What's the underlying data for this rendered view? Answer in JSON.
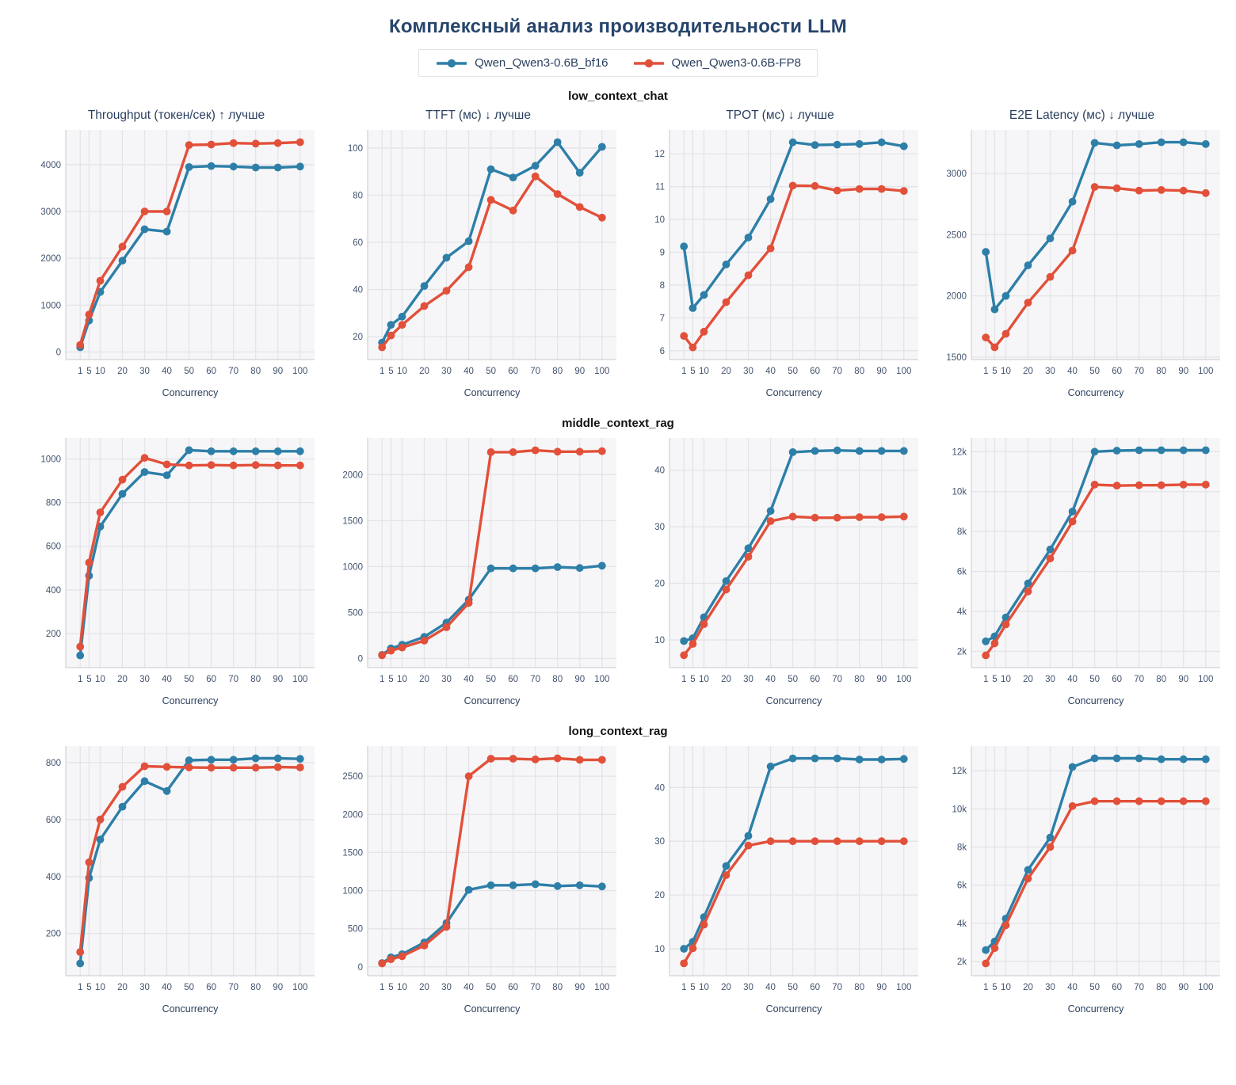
{
  "title": "Комплексный анализ производительности LLM",
  "legend": {
    "series": [
      {
        "name": "Qwen_Qwen3-0.6B_bf16",
        "color": "#2d7fa8"
      },
      {
        "name": "Qwen_Qwen3-0.6B-FP8",
        "color": "#e2503a"
      }
    ]
  },
  "colors": {
    "plot_bg": "#f6f6f8",
    "grid": "#e4e4e8",
    "spine": "#d2d2d8",
    "tick_label": "#42536e",
    "axis_title": "#2a3f5f",
    "chart_title": "#2a3f5f",
    "page_title": "#27456b",
    "section_label": "#111111"
  },
  "sections": [
    {
      "label": "low_context_chat",
      "charts": [
        0,
        1,
        2,
        3
      ]
    },
    {
      "label": "middle_context_rag",
      "charts": [
        4,
        5,
        6,
        7
      ]
    },
    {
      "label": "long_context_rag",
      "charts": [
        8,
        9,
        10,
        11
      ]
    }
  ],
  "chart_data": [
    {
      "type": "line",
      "group": "low_context_chat",
      "title": "Throughput (токен/сек) ↑ лучше",
      "xlabel": "Concurrency",
      "x": [
        1,
        5,
        10,
        20,
        30,
        40,
        50,
        60,
        70,
        80,
        90,
        100
      ],
      "series": [
        {
          "name": "Qwen_Qwen3-0.6B_bf16",
          "values": [
            100,
            670,
            1280,
            1950,
            2620,
            2570,
            3950,
            3970,
            3960,
            3940,
            3940,
            3960
          ]
        },
        {
          "name": "Qwen_Qwen3-0.6B-FP8",
          "values": [
            150,
            800,
            1520,
            2250,
            3000,
            3000,
            4420,
            4430,
            4460,
            4450,
            4460,
            4480
          ]
        }
      ],
      "ylim": [
        -163,
        4743
      ],
      "yticks": [
        0,
        1000,
        2000,
        3000,
        4000
      ],
      "ytick_labels": [
        "0",
        "1000",
        "2000",
        "3000",
        "4000"
      ]
    },
    {
      "type": "line",
      "group": "low_context_chat",
      "title": "TTFT (мс) ↓ лучше",
      "xlabel": "Concurrency",
      "x": [
        1,
        5,
        10,
        20,
        30,
        40,
        50,
        60,
        70,
        80,
        90,
        100
      ],
      "series": [
        {
          "name": "Qwen_Qwen3-0.6B_bf16",
          "values": [
            17.5,
            25,
            28.5,
            41.5,
            53.5,
            60.5,
            91,
            87.5,
            92.5,
            102.5,
            89.5,
            100.5
          ]
        },
        {
          "name": "Qwen_Qwen3-0.6B-FP8",
          "values": [
            15.5,
            20.5,
            25,
            33,
            39.5,
            49.5,
            78,
            73.5,
            88,
            80.5,
            75,
            70.5
          ]
        }
      ],
      "ylim": [
        10.3,
        107.7
      ],
      "yticks": [
        20,
        40,
        60,
        80,
        100
      ],
      "ytick_labels": [
        "20",
        "40",
        "60",
        "80",
        "100"
      ]
    },
    {
      "type": "line",
      "group": "low_context_chat",
      "title": "TPOT (мс) ↓ лучше",
      "xlabel": "Concurrency",
      "x": [
        1,
        5,
        10,
        20,
        30,
        40,
        50,
        60,
        70,
        80,
        90,
        100
      ],
      "series": [
        {
          "name": "Qwen_Qwen3-0.6B_bf16",
          "values": [
            9.18,
            7.3,
            7.7,
            8.63,
            9.45,
            10.62,
            12.35,
            12.27,
            12.28,
            12.3,
            12.35,
            12.23
          ]
        },
        {
          "name": "Qwen_Qwen3-0.6B-FP8",
          "values": [
            6.45,
            6.1,
            6.58,
            7.48,
            8.3,
            9.12,
            11.03,
            11.02,
            10.88,
            10.93,
            10.93,
            10.87
          ]
        }
      ],
      "ylim": [
        5.73,
        12.73
      ],
      "yticks": [
        6,
        7,
        8,
        9,
        10,
        11,
        12
      ],
      "ytick_labels": [
        "6",
        "7",
        "8",
        "9",
        "10",
        "11",
        "12"
      ]
    },
    {
      "type": "line",
      "group": "low_context_chat",
      "title": "E2E Latency (мс) ↓ лучше",
      "xlabel": "Concurrency",
      "x": [
        1,
        5,
        10,
        20,
        30,
        40,
        50,
        60,
        70,
        80,
        90,
        100
      ],
      "series": [
        {
          "name": "Qwen_Qwen3-0.6B_bf16",
          "values": [
            2360,
            1890,
            2000,
            2250,
            2470,
            2770,
            3250,
            3230,
            3240,
            3255,
            3255,
            3240
          ]
        },
        {
          "name": "Qwen_Qwen3-0.6B-FP8",
          "values": [
            1660,
            1580,
            1690,
            1945,
            2155,
            2370,
            2890,
            2880,
            2860,
            2865,
            2860,
            2840
          ]
        }
      ],
      "ylim": [
        1480,
        3356
      ],
      "yticks": [
        1500,
        2000,
        2500,
        3000
      ],
      "ytick_labels": [
        "1500",
        "2000",
        "2500",
        "3000"
      ]
    },
    {
      "type": "line",
      "group": "middle_context_rag",
      "title": "",
      "xlabel": "Concurrency",
      "x": [
        1,
        5,
        10,
        20,
        30,
        40,
        50,
        60,
        70,
        80,
        90,
        100
      ],
      "series": [
        {
          "name": "Qwen_Qwen3-0.6B_bf16",
          "values": [
            100,
            465,
            690,
            840,
            940,
            925,
            1040,
            1035,
            1035,
            1035,
            1035,
            1035
          ]
        },
        {
          "name": "Qwen_Qwen3-0.6B-FP8",
          "values": [
            140,
            525,
            755,
            905,
            1005,
            975,
            970,
            972,
            970,
            972,
            970,
            970
          ]
        }
      ],
      "ylim": [
        44,
        1096
      ],
      "yticks": [
        200,
        400,
        600,
        800,
        1000
      ],
      "ytick_labels": [
        "200",
        "400",
        "600",
        "800",
        "1000"
      ]
    },
    {
      "type": "line",
      "group": "middle_context_rag",
      "title": "",
      "xlabel": "Concurrency",
      "x": [
        1,
        5,
        10,
        20,
        30,
        40,
        50,
        60,
        70,
        80,
        90,
        100
      ],
      "series": [
        {
          "name": "Qwen_Qwen3-0.6B_bf16",
          "values": [
            40,
            110,
            150,
            235,
            390,
            640,
            980,
            980,
            980,
            995,
            985,
            1010
          ]
        },
        {
          "name": "Qwen_Qwen3-0.6B-FP8",
          "values": [
            35,
            85,
            120,
            195,
            340,
            605,
            2245,
            2245,
            2265,
            2250,
            2250,
            2255
          ]
        }
      ],
      "ylim": [
        -99,
        2399
      ],
      "yticks": [
        0,
        500,
        1000,
        1500,
        2000
      ],
      "ytick_labels": [
        "0",
        "500",
        "1000",
        "1500",
        "2000"
      ]
    },
    {
      "type": "line",
      "group": "middle_context_rag",
      "title": "",
      "xlabel": "Concurrency",
      "x": [
        1,
        5,
        10,
        20,
        30,
        40,
        50,
        60,
        70,
        80,
        90,
        100
      ],
      "series": [
        {
          "name": "Qwen_Qwen3-0.6B_bf16",
          "values": [
            9.8,
            10.3,
            14.0,
            20.4,
            26.2,
            32.8,
            43.2,
            43.4,
            43.5,
            43.4,
            43.4,
            43.4
          ]
        },
        {
          "name": "Qwen_Qwen3-0.6B-FP8",
          "values": [
            7.3,
            9.3,
            12.8,
            18.9,
            24.7,
            31.0,
            31.8,
            31.6,
            31.6,
            31.7,
            31.7,
            31.8
          ]
        }
      ],
      "ylim": [
        5.1,
        45.7
      ],
      "yticks": [
        10,
        20,
        30,
        40
      ],
      "ytick_labels": [
        "10",
        "20",
        "30",
        "40"
      ]
    },
    {
      "type": "line",
      "group": "middle_context_rag",
      "title": "",
      "xlabel": "Concurrency",
      "x": [
        1,
        5,
        10,
        20,
        30,
        40,
        50,
        60,
        70,
        80,
        90,
        100
      ],
      "series": [
        {
          "name": "Qwen_Qwen3-0.6B_bf16",
          "values": [
            2500,
            2750,
            3700,
            5400,
            7100,
            9000,
            12000,
            12050,
            12070,
            12070,
            12070,
            12070
          ]
        },
        {
          "name": "Qwen_Qwen3-0.6B-FP8",
          "values": [
            1800,
            2400,
            3350,
            5000,
            6650,
            8500,
            10350,
            10300,
            10320,
            10320,
            10350,
            10350
          ]
        }
      ],
      "ylim": [
        1184,
        12686
      ],
      "yticks": [
        2000,
        4000,
        6000,
        8000,
        10000,
        12000
      ],
      "ytick_labels": [
        "2k",
        "4k",
        "6k",
        "8k",
        "10k",
        "12k"
      ]
    },
    {
      "type": "line",
      "group": "long_context_rag",
      "title": "",
      "xlabel": "Concurrency",
      "x": [
        1,
        5,
        10,
        20,
        30,
        40,
        50,
        60,
        70,
        80,
        90,
        100
      ],
      "series": [
        {
          "name": "Qwen_Qwen3-0.6B_bf16",
          "values": [
            95,
            395,
            530,
            645,
            735,
            700,
            808,
            810,
            810,
            815,
            815,
            813
          ]
        },
        {
          "name": "Qwen_Qwen3-0.6B-FP8",
          "values": [
            135,
            450,
            600,
            715,
            787,
            785,
            783,
            782,
            782,
            782,
            784,
            783
          ]
        }
      ],
      "ylim": [
        52,
        858
      ],
      "yticks": [
        200,
        400,
        600,
        800
      ],
      "ytick_labels": [
        "200",
        "400",
        "600",
        "800"
      ]
    },
    {
      "type": "line",
      "group": "long_context_rag",
      "title": "",
      "xlabel": "Concurrency",
      "x": [
        1,
        5,
        10,
        20,
        30,
        40,
        50,
        60,
        70,
        80,
        90,
        100
      ],
      "series": [
        {
          "name": "Qwen_Qwen3-0.6B_bf16",
          "values": [
            50,
            125,
            165,
            320,
            575,
            1010,
            1070,
            1070,
            1085,
            1060,
            1070,
            1055
          ]
        },
        {
          "name": "Qwen_Qwen3-0.6B-FP8",
          "values": [
            45,
            100,
            140,
            280,
            525,
            2500,
            2730,
            2730,
            2720,
            2735,
            2715,
            2715
          ]
        }
      ],
      "ylim": [
        -116,
        2896
      ],
      "yticks": [
        0,
        500,
        1000,
        1500,
        2000,
        2500
      ],
      "ytick_labels": [
        "0",
        "500",
        "1000",
        "1500",
        "2000",
        "2500"
      ]
    },
    {
      "type": "line",
      "group": "long_context_rag",
      "title": "",
      "xlabel": "Concurrency",
      "x": [
        1,
        5,
        10,
        20,
        30,
        40,
        50,
        60,
        70,
        80,
        90,
        100
      ],
      "series": [
        {
          "name": "Qwen_Qwen3-0.6B_bf16",
          "values": [
            10.0,
            11.3,
            15.9,
            25.4,
            31.0,
            43.9,
            45.4,
            45.4,
            45.4,
            45.2,
            45.2,
            45.3
          ]
        },
        {
          "name": "Qwen_Qwen3-0.6B-FP8",
          "values": [
            7.3,
            10.1,
            14.5,
            23.7,
            29.2,
            30.0,
            30.0,
            30.0,
            30.0,
            30.0,
            30.0,
            30.0
          ]
        }
      ],
      "ylim": [
        5.0,
        47.7
      ],
      "yticks": [
        10,
        20,
        30,
        40
      ],
      "ytick_labels": [
        "10",
        "20",
        "30",
        "40"
      ]
    },
    {
      "type": "line",
      "group": "long_context_rag",
      "title": "",
      "xlabel": "Concurrency",
      "x": [
        1,
        5,
        10,
        20,
        30,
        40,
        50,
        60,
        70,
        80,
        90,
        100
      ],
      "series": [
        {
          "name": "Qwen_Qwen3-0.6B_bf16",
          "values": [
            2600,
            3050,
            4250,
            6800,
            8500,
            12200,
            12650,
            12650,
            12650,
            12600,
            12600,
            12600
          ]
        },
        {
          "name": "Qwen_Qwen3-0.6B-FP8",
          "values": [
            1900,
            2700,
            3900,
            6350,
            8000,
            10150,
            10400,
            10400,
            10400,
            10400,
            10400,
            10400
          ]
        }
      ],
      "ylim": [
        1255,
        13295
      ],
      "yticks": [
        2000,
        4000,
        6000,
        8000,
        10000,
        12000
      ],
      "ytick_labels": [
        "2k",
        "4k",
        "6k",
        "8k",
        "10k",
        "12k"
      ]
    }
  ]
}
